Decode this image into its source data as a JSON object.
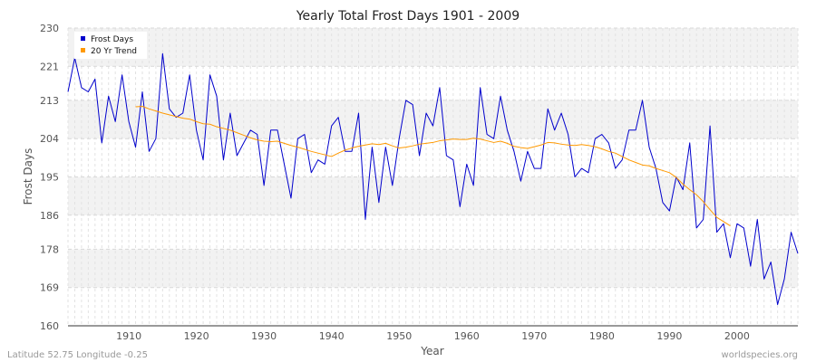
{
  "chart_data": {
    "type": "line",
    "title": "Yearly Total Frost Days 1901 - 2009",
    "xlabel": "Year",
    "ylabel": "Frost Days",
    "xlim": [
      1901,
      2009
    ],
    "ylim": [
      160,
      230
    ],
    "xticks": [
      1910,
      1920,
      1930,
      1940,
      1950,
      1960,
      1970,
      1980,
      1990,
      2000
    ],
    "yticks": [
      160,
      169,
      178,
      186,
      195,
      204,
      213,
      221,
      230
    ],
    "grid": true,
    "legend_position": "top-left",
    "series": [
      {
        "name": "Frost Days",
        "color": "#0000cc",
        "x": [
          1901,
          1902,
          1903,
          1904,
          1905,
          1906,
          1907,
          1908,
          1909,
          1910,
          1911,
          1912,
          1913,
          1914,
          1915,
          1916,
          1917,
          1918,
          1919,
          1920,
          1921,
          1922,
          1923,
          1924,
          1925,
          1926,
          1927,
          1928,
          1929,
          1930,
          1931,
          1932,
          1933,
          1934,
          1935,
          1936,
          1937,
          1938,
          1939,
          1940,
          1941,
          1942,
          1943,
          1944,
          1945,
          1946,
          1947,
          1948,
          1949,
          1950,
          1951,
          1952,
          1953,
          1954,
          1955,
          1956,
          1957,
          1958,
          1959,
          1960,
          1961,
          1962,
          1963,
          1964,
          1965,
          1966,
          1967,
          1968,
          1969,
          1970,
          1971,
          1972,
          1973,
          1974,
          1975,
          1976,
          1977,
          1978,
          1979,
          1980,
          1981,
          1982,
          1983,
          1984,
          1985,
          1986,
          1987,
          1988,
          1989,
          1990,
          1991,
          1992,
          1993,
          1994,
          1995,
          1996,
          1997,
          1998,
          1999,
          2000,
          2001,
          2002,
          2003,
          2004,
          2005,
          2006,
          2007,
          2008,
          2009
        ],
        "y": [
          215,
          223,
          216,
          215,
          218,
          203,
          214,
          208,
          219,
          208,
          202,
          215,
          201,
          204,
          224,
          211,
          209,
          210,
          219,
          206,
          199,
          219,
          214,
          199,
          210,
          200,
          203,
          206,
          205,
          193,
          206,
          206,
          198,
          190,
          204,
          205,
          196,
          199,
          198,
          207,
          209,
          201,
          201,
          210,
          185,
          202,
          189,
          202,
          193,
          204,
          213,
          212,
          200,
          210,
          207,
          216,
          200,
          199,
          188,
          198,
          193,
          216,
          205,
          204,
          214,
          206,
          201,
          194,
          201,
          197,
          197,
          211,
          206,
          210,
          205,
          195,
          197,
          196,
          204,
          205,
          203,
          197,
          199,
          206,
          206,
          213,
          202,
          197,
          189,
          187,
          195,
          192,
          203,
          183,
          185,
          207,
          182,
          184,
          176,
          184,
          183,
          174,
          185,
          171,
          175,
          165,
          171,
          182,
          177
        ]
      },
      {
        "name": "20 Yr Trend",
        "color": "#ff9900",
        "x": [
          1911,
          1912,
          1913,
          1914,
          1915,
          1916,
          1917,
          1918,
          1919,
          1920,
          1921,
          1922,
          1923,
          1924,
          1925,
          1926,
          1927,
          1928,
          1929,
          1930,
          1931,
          1932,
          1933,
          1934,
          1935,
          1936,
          1937,
          1938,
          1939,
          1940,
          1941,
          1942,
          1943,
          1944,
          1945,
          1946,
          1947,
          1948,
          1949,
          1950,
          1951,
          1952,
          1953,
          1954,
          1955,
          1956,
          1957,
          1958,
          1959,
          1960,
          1961,
          1962,
          1963,
          1964,
          1965,
          1966,
          1967,
          1968,
          1969,
          1970,
          1971,
          1972,
          1973,
          1974,
          1975,
          1976,
          1977,
          1978,
          1979,
          1980,
          1981,
          1982,
          1983,
          1984,
          1985,
          1986,
          1987,
          1988,
          1989,
          1990,
          1991,
          1992,
          1993,
          1994,
          1995,
          1996,
          1997,
          1998,
          1999
        ],
        "y": [
          211.5,
          211.6,
          211.0,
          210.5,
          210.0,
          209.6,
          209.2,
          208.8,
          208.6,
          208.0,
          207.5,
          207.4,
          206.8,
          206.4,
          206.0,
          205.4,
          204.8,
          204.2,
          203.7,
          203.4,
          203.3,
          203.4,
          202.9,
          202.4,
          202.0,
          201.5,
          201.0,
          200.6,
          200.2,
          199.8,
          200.6,
          201.3,
          201.8,
          202.2,
          202.5,
          202.8,
          202.6,
          202.9,
          202.3,
          201.8,
          202.0,
          202.3,
          202.7,
          202.9,
          203.1,
          203.5,
          203.7,
          203.9,
          203.8,
          203.8,
          204.1,
          203.9,
          203.5,
          203.1,
          203.4,
          202.9,
          202.2,
          201.9,
          201.7,
          202.1,
          202.5,
          203.1,
          203.0,
          202.7,
          202.5,
          202.4,
          202.6,
          202.4,
          202.1,
          201.6,
          201.0,
          200.6,
          199.8,
          199.0,
          198.4,
          197.8,
          197.6,
          197.0,
          196.5,
          196.0,
          194.9,
          193.3,
          192.0,
          190.8,
          189.2,
          187.3,
          185.5,
          184.5,
          183.5
        ]
      }
    ]
  },
  "footer": {
    "left": "Latitude 52.75 Longitude -0.25",
    "right": "worldspecies.org"
  }
}
